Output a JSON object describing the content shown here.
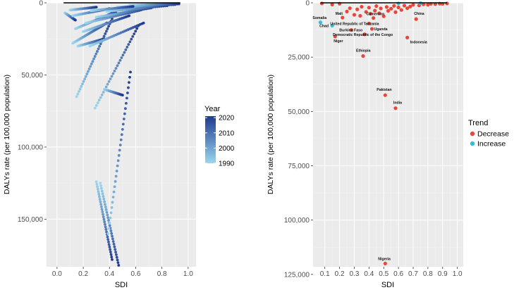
{
  "chart_data": [
    {
      "type": "scatter",
      "xlabel": "SDI",
      "ylabel": "DALYs rate (per 100,000 population)",
      "y_reversed": true,
      "xlim": [
        -0.08,
        1.06
      ],
      "ylim": [
        0,
        183000
      ],
      "xticks": [
        0.0,
        0.2,
        0.4,
        0.6,
        0.8,
        1.0
      ],
      "xtick_labels": [
        "0.0",
        "0.2",
        "0.4",
        "0.6",
        "0.8",
        "1.0"
      ],
      "yticks": [
        0,
        50000,
        100000,
        150000
      ],
      "ytick_labels": [
        "0",
        "50,000",
        "100,000",
        "150,000"
      ],
      "grid": true,
      "legend": {
        "title": "Year",
        "type": "colorbar",
        "placement": "right",
        "range": [
          1990,
          2021
        ],
        "ticks": [
          2020,
          2010,
          2000,
          1990
        ],
        "tick_labels": [
          "2020",
          "2010",
          "2000",
          "1990"
        ],
        "color_low": "#9ad7ef",
        "color_high": "#1f3a8f"
      },
      "series": [
        {
          "x0": 0.33,
          "x1": 0.47,
          "y0": 125000,
          "y1": 182000
        },
        {
          "x0": 0.3,
          "x1": 0.42,
          "y0": 124000,
          "y1": 178000
        },
        {
          "x0": 0.39,
          "x1": 0.56,
          "y0": 160000,
          "y1": 48000
        },
        {
          "x0": 0.29,
          "x1": 0.62,
          "y0": 73000,
          "y1": 16000
        },
        {
          "x0": 0.15,
          "x1": 0.42,
          "y0": 65000,
          "y1": 11000
        },
        {
          "x0": 0.36,
          "x1": 0.5,
          "y0": 60000,
          "y1": 64000
        },
        {
          "x0": 0.16,
          "x1": 0.36,
          "y0": 30000,
          "y1": 25000
        },
        {
          "x0": 0.12,
          "x1": 0.38,
          "y0": 28000,
          "y1": 14000
        },
        {
          "x0": 0.25,
          "x1": 0.66,
          "y0": 30000,
          "y1": 14000
        },
        {
          "x0": 0.2,
          "x1": 0.55,
          "y0": 20000,
          "y1": 9000
        },
        {
          "x0": 0.06,
          "x1": 0.14,
          "y0": 7000,
          "y1": 12000
        },
        {
          "x0": 0.14,
          "x1": 0.45,
          "y0": 18000,
          "y1": 6000
        },
        {
          "x0": 0.22,
          "x1": 0.64,
          "y0": 14000,
          "y1": 5000
        },
        {
          "x0": 0.3,
          "x1": 0.72,
          "y0": 10000,
          "y1": 3500
        },
        {
          "x0": 0.12,
          "x1": 0.4,
          "y0": 9000,
          "y1": 4000
        },
        {
          "x0": 0.38,
          "x1": 0.84,
          "y0": 6000,
          "y1": 2000
        },
        {
          "x0": 0.46,
          "x1": 0.9,
          "y0": 3000,
          "y1": 1200
        },
        {
          "x0": 0.55,
          "x1": 0.93,
          "y0": 1800,
          "y1": 800
        },
        {
          "x0": 0.1,
          "x1": 0.3,
          "y0": 5000,
          "y1": 3000
        },
        {
          "x0": 0.26,
          "x1": 0.58,
          "y0": 5500,
          "y1": 2500
        }
      ],
      "reference_line": {
        "x0": 0.05,
        "x1": 0.94,
        "y": 0
      }
    },
    {
      "type": "scatter",
      "xlabel": "SDI",
      "ylabel": "DALYs rate (per 100,000 population)",
      "y_reversed": true,
      "xlim": [
        0.02,
        1.04
      ],
      "ylim": [
        0,
        121500
      ],
      "xticks": [
        0.1,
        0.2,
        0.3,
        0.4,
        0.5,
        0.6,
        0.7,
        0.8,
        0.9,
        1.0
      ],
      "xtick_labels": [
        "0.1",
        "0.2",
        "0.3",
        "0.4",
        "0.5",
        "0.6",
        "0.7",
        "0.8",
        "0.9",
        "1.0"
      ],
      "yticks": [
        0,
        25000,
        50000,
        75000,
        100000,
        125000
      ],
      "ytick_labels": [
        "0",
        "25,000",
        "50,000",
        "75,000",
        "100,000",
        "125,000"
      ],
      "grid": true,
      "legend": {
        "title": "Trend",
        "placement": "right",
        "entries": [
          {
            "label": "Decrease",
            "color": "#e8483a"
          },
          {
            "label": "Increase",
            "color": "#34bfd8"
          }
        ]
      },
      "points": [
        {
          "x": 0.51,
          "y": 120000,
          "trend": "Decrease",
          "label": "Nigeria"
        },
        {
          "x": 0.58,
          "y": 48500,
          "trend": "Decrease",
          "label": "India"
        },
        {
          "x": 0.51,
          "y": 42500,
          "trend": "Decrease",
          "label": "Pakistan"
        },
        {
          "x": 0.36,
          "y": 24500,
          "trend": "Decrease",
          "label": "Ethiopia"
        },
        {
          "x": 0.66,
          "y": 16000,
          "trend": "Decrease",
          "label": "Indonesia"
        },
        {
          "x": 0.17,
          "y": 15500,
          "trend": "Decrease",
          "label": "Niger"
        },
        {
          "x": 0.37,
          "y": 14500,
          "trend": "Decrease",
          "label": "Democratic Republic of the Congo"
        },
        {
          "x": 0.28,
          "y": 12500,
          "trend": "Decrease",
          "label": "Burkina Faso"
        },
        {
          "x": 0.42,
          "y": 12000,
          "trend": "Decrease",
          "label": "Uganda"
        },
        {
          "x": 0.15,
          "y": 10500,
          "trend": "Increase",
          "label": "Chad"
        },
        {
          "x": 0.4,
          "y": 9500,
          "trend": "Decrease",
          "label": "United Republic of Tanzania"
        },
        {
          "x": 0.07,
          "y": 9000,
          "trend": "Increase",
          "label": "Somalia"
        },
        {
          "x": 0.72,
          "y": 7500,
          "trend": "Decrease",
          "label": "China"
        },
        {
          "x": 0.43,
          "y": 7000,
          "trend": "Decrease",
          "label": "Cameroon"
        },
        {
          "x": 0.22,
          "y": 6800,
          "trend": "Decrease",
          "label": "Mali"
        },
        {
          "x": 0.25,
          "y": 4000,
          "trend": "Decrease"
        },
        {
          "x": 0.27,
          "y": 2500,
          "trend": "Decrease"
        },
        {
          "x": 0.3,
          "y": 5500,
          "trend": "Decrease"
        },
        {
          "x": 0.32,
          "y": 3000,
          "trend": "Decrease"
        },
        {
          "x": 0.34,
          "y": 6000,
          "trend": "Decrease"
        },
        {
          "x": 0.35,
          "y": 1800,
          "trend": "Decrease"
        },
        {
          "x": 0.38,
          "y": 4200,
          "trend": "Decrease"
        },
        {
          "x": 0.4,
          "y": 2200,
          "trend": "Decrease"
        },
        {
          "x": 0.41,
          "y": 5000,
          "trend": "Decrease"
        },
        {
          "x": 0.44,
          "y": 3600,
          "trend": "Decrease"
        },
        {
          "x": 0.45,
          "y": 1500,
          "trend": "Decrease"
        },
        {
          "x": 0.47,
          "y": 4800,
          "trend": "Decrease"
        },
        {
          "x": 0.48,
          "y": 2600,
          "trend": "Decrease"
        },
        {
          "x": 0.5,
          "y": 6200,
          "trend": "Decrease"
        },
        {
          "x": 0.52,
          "y": 1900,
          "trend": "Decrease"
        },
        {
          "x": 0.53,
          "y": 3700,
          "trend": "Decrease"
        },
        {
          "x": 0.55,
          "y": 2700,
          "trend": "Decrease"
        },
        {
          "x": 0.57,
          "y": 1400,
          "trend": "Decrease"
        },
        {
          "x": 0.58,
          "y": 4300,
          "trend": "Decrease"
        },
        {
          "x": 0.6,
          "y": 2100,
          "trend": "Decrease"
        },
        {
          "x": 0.62,
          "y": 3300,
          "trend": "Decrease"
        },
        {
          "x": 0.64,
          "y": 1300,
          "trend": "Decrease"
        },
        {
          "x": 0.66,
          "y": 2500,
          "trend": "Decrease"
        },
        {
          "x": 0.68,
          "y": 1700,
          "trend": "Decrease"
        },
        {
          "x": 0.7,
          "y": 900,
          "trend": "Decrease"
        },
        {
          "x": 0.74,
          "y": 1200,
          "trend": "Decrease"
        },
        {
          "x": 0.77,
          "y": 700,
          "trend": "Decrease"
        },
        {
          "x": 0.8,
          "y": 900,
          "trend": "Decrease"
        },
        {
          "x": 0.82,
          "y": 500,
          "trend": "Decrease"
        },
        {
          "x": 0.85,
          "y": 600,
          "trend": "Decrease"
        },
        {
          "x": 0.88,
          "y": 400,
          "trend": "Decrease"
        },
        {
          "x": 0.9,
          "y": 500,
          "trend": "Decrease"
        },
        {
          "x": 0.93,
          "y": 300,
          "trend": "Decrease"
        },
        {
          "x": 0.2,
          "y": 400,
          "trend": "Decrease"
        },
        {
          "x": 0.08,
          "y": 300,
          "trend": "Decrease"
        },
        {
          "x": 0.15,
          "y": 800,
          "trend": "Decrease"
        },
        {
          "x": 0.6,
          "y": 300,
          "trend": "Increase"
        },
        {
          "x": 0.75,
          "y": 200,
          "trend": "Increase"
        }
      ],
      "reference_line": {
        "x0": 0.07,
        "x1": 0.93,
        "y": 0
      }
    }
  ]
}
